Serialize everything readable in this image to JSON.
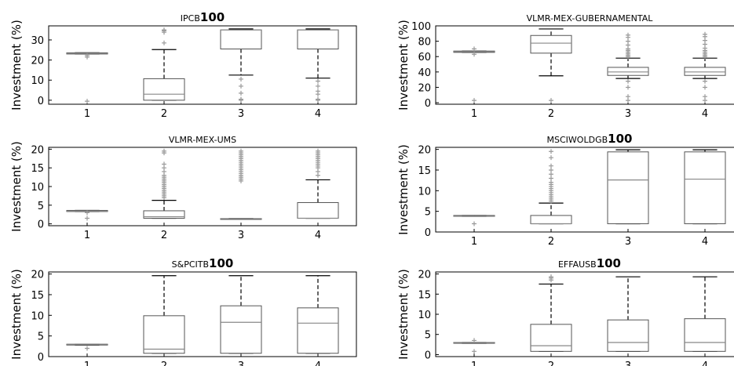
{
  "chart_data": [
    {
      "type": "box",
      "title_small": "IPCB",
      "title_big": "100",
      "ylabel": "Investment (%)",
      "categories": [
        "1",
        "2",
        "3",
        "4"
      ],
      "ylim": [
        -2,
        37
      ],
      "yticks": [
        0,
        10,
        20,
        30
      ],
      "boxes": [
        {
          "whislo": 23.0,
          "q1": 23.0,
          "med": 23.3,
          "q3": 23.6,
          "whishi": 23.6,
          "fliers": [
            -0.5,
            21.5,
            22.3
          ]
        },
        {
          "whislo": 0.0,
          "q1": 0.0,
          "med": 3.0,
          "q3": 10.7,
          "whishi": 25.2,
          "fliers": [
            28.5,
            33.8,
            34.5,
            35.0
          ]
        },
        {
          "whislo": 12.5,
          "q1": 25.5,
          "med": 35.0,
          "q3": 35.0,
          "whishi": 35.5,
          "fliers": [
            0.0,
            0.5,
            3.5,
            7.0,
            10.5
          ]
        },
        {
          "whislo": 11.0,
          "q1": 25.5,
          "med": 35.0,
          "q3": 35.0,
          "whishi": 35.5,
          "fliers": [
            0.0,
            0.5,
            3.0,
            4.5,
            7.0,
            9.5
          ]
        }
      ]
    },
    {
      "type": "box",
      "title_small": "VLMR-MEX-GUBERNAMENTAL",
      "title_big": "",
      "ylabel": "Investment (%)",
      "categories": [
        "1",
        "2",
        "3",
        "4"
      ],
      "ylim": [
        -2,
        100
      ],
      "yticks": [
        0,
        20,
        40,
        60,
        80,
        100
      ],
      "boxes": [
        {
          "whislo": 65.5,
          "q1": 65.5,
          "med": 66.5,
          "q3": 67.2,
          "whishi": 67.2,
          "fliers": [
            3.0,
            63.0,
            70.0
          ]
        },
        {
          "whislo": 35.0,
          "q1": 64.5,
          "med": 77.5,
          "q3": 87.5,
          "whishi": 96.0,
          "fliers": [
            3.0
          ]
        },
        {
          "whislo": 31.5,
          "q1": 35.5,
          "med": 40.0,
          "q3": 46.0,
          "whishi": 58.0,
          "fliers": [
            3.0,
            8.0,
            20.0,
            28.0,
            60.0,
            62.0,
            64.0,
            66.0,
            68.0,
            70.0,
            75.0,
            80.0,
            85.0,
            88.0
          ]
        },
        {
          "whislo": 31.5,
          "q1": 35.5,
          "med": 40.0,
          "q3": 46.0,
          "whishi": 58.0,
          "fliers": [
            3.0,
            8.0,
            20.0,
            28.0,
            60.0,
            62.0,
            64.0,
            66.0,
            68.0,
            71.0,
            76.0,
            81.0,
            86.0,
            89.0
          ]
        }
      ]
    },
    {
      "type": "box",
      "title_small": "VLMR-MEX-UMS",
      "title_big": "",
      "ylabel": "Investment (%)",
      "categories": [
        "1",
        "2",
        "3",
        "4"
      ],
      "ylim": [
        -0.5,
        20.5
      ],
      "yticks": [
        0,
        5,
        10,
        15,
        20
      ],
      "boxes": [
        {
          "whislo": 3.3,
          "q1": 3.3,
          "med": 3.4,
          "q3": 3.6,
          "whishi": 3.6,
          "fliers": [
            1.5,
            3.0
          ]
        },
        {
          "whislo": 1.5,
          "q1": 1.5,
          "med": 1.9,
          "q3": 3.5,
          "whishi": 6.3,
          "fliers": [
            7.0,
            7.5,
            8.0,
            8.5,
            9.0,
            9.5,
            10.0,
            10.5,
            11.0,
            11.5,
            12.0,
            12.5,
            13.0,
            14.0,
            15.0,
            16.0,
            19.0,
            19.5
          ]
        },
        {
          "whislo": 1.4,
          "q1": 1.4,
          "med": 1.4,
          "q3": 1.4,
          "whishi": 1.4,
          "fliers": [
            11.5,
            12.0,
            12.5,
            13.0,
            13.5,
            14.0,
            14.5,
            15.0,
            15.5,
            16.0,
            16.5,
            17.0,
            17.5,
            18.0,
            18.5,
            19.0,
            19.5
          ]
        },
        {
          "whislo": 1.5,
          "q1": 1.5,
          "med": 1.5,
          "q3": 5.7,
          "whishi": 11.8,
          "fliers": [
            13.0,
            14.0,
            15.0,
            15.5,
            16.0,
            16.5,
            17.0,
            17.5,
            18.0,
            18.5,
            19.0,
            19.5
          ]
        }
      ]
    },
    {
      "type": "box",
      "title_small": "MSCIWOLDGB",
      "title_big": "100",
      "ylabel": "Investment (%)",
      "categories": [
        "1",
        "2",
        "3",
        "4"
      ],
      "ylim": [
        0,
        20.5
      ],
      "yticks": [
        0,
        5,
        10,
        15,
        20
      ],
      "boxes": [
        {
          "whislo": 3.8,
          "q1": 3.8,
          "med": 3.8,
          "q3": 4.0,
          "whishi": 4.0,
          "fliers": [
            2.0
          ]
        },
        {
          "whislo": 2.0,
          "q1": 2.0,
          "med": 2.0,
          "q3": 4.0,
          "whishi": 7.0,
          "fliers": [
            7.5,
            8.0,
            8.5,
            9.0,
            9.5,
            10.0,
            10.5,
            11.0,
            11.5,
            12.0,
            13.0,
            14.0,
            15.0,
            16.0,
            18.0,
            19.5
          ]
        },
        {
          "whislo": 2.0,
          "q1": 2.0,
          "med": 12.6,
          "q3": 19.4,
          "whishi": 19.9,
          "fliers": []
        },
        {
          "whislo": 2.0,
          "q1": 2.0,
          "med": 12.8,
          "q3": 19.4,
          "whishi": 19.9,
          "fliers": []
        }
      ]
    },
    {
      "type": "box",
      "title_small": "S&PCITB",
      "title_big": "100",
      "ylabel": "Investment (%)",
      "categories": [
        "1",
        "2",
        "3",
        "4"
      ],
      "ylim": [
        0,
        20.5
      ],
      "yticks": [
        0,
        5,
        10,
        15,
        20
      ],
      "boxes": [
        {
          "whislo": 2.8,
          "q1": 2.8,
          "med": 3.0,
          "q3": 3.0,
          "whishi": 3.0,
          "fliers": [
            2.0
          ]
        },
        {
          "whislo": 0.8,
          "q1": 0.8,
          "med": 1.8,
          "q3": 9.9,
          "whishi": 19.6,
          "fliers": []
        },
        {
          "whislo": 0.8,
          "q1": 0.8,
          "med": 8.3,
          "q3": 12.3,
          "whishi": 19.6,
          "fliers": []
        },
        {
          "whislo": 0.8,
          "q1": 0.8,
          "med": 8.1,
          "q3": 11.8,
          "whishi": 19.6,
          "fliers": []
        }
      ]
    },
    {
      "type": "box",
      "title_small": "EFFAUSB",
      "title_big": "100",
      "ylabel": "Investment (%)",
      "categories": [
        "1",
        "2",
        "3",
        "4"
      ],
      "ylim": [
        -0.5,
        20.5
      ],
      "yticks": [
        0,
        5,
        10,
        15,
        20
      ],
      "boxes": [
        {
          "whislo": 2.8,
          "q1": 2.8,
          "med": 3.0,
          "q3": 3.0,
          "whishi": 3.0,
          "fliers": [
            0.8,
            3.5
          ]
        },
        {
          "whislo": 0.8,
          "q1": 0.8,
          "med": 2.2,
          "q3": 7.5,
          "whishi": 17.5,
          "fliers": [
            18.5,
            19.0,
            19.3
          ]
        },
        {
          "whislo": 0.8,
          "q1": 0.8,
          "med": 3.0,
          "q3": 8.6,
          "whishi": 19.3,
          "fliers": []
        },
        {
          "whislo": 0.8,
          "q1": 0.8,
          "med": 3.0,
          "q3": 8.9,
          "whishi": 19.3,
          "fliers": []
        }
      ]
    }
  ]
}
